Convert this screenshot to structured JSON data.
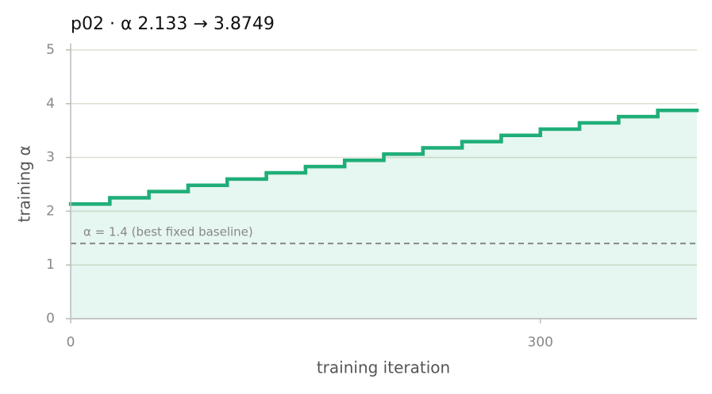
{
  "chart_data": {
    "type": "step",
    "title": "p02   ·   α 2.133 → 3.8749",
    "xlabel": "training iteration",
    "ylabel": "training α",
    "x": [
      0,
      25,
      50,
      75,
      100,
      125,
      150,
      175,
      200,
      225,
      250,
      275,
      300,
      325,
      350,
      375
    ],
    "series": [
      {
        "color": "#1fae78",
        "values": [
          2.133,
          2.2491,
          2.3653,
          2.4814,
          2.5975,
          2.7137,
          2.8298,
          2.9459,
          3.062,
          3.1782,
          3.2943,
          3.4104,
          3.5265,
          3.6427,
          3.7588,
          3.8749
        ]
      }
    ],
    "baseline": {
      "value": 1.4,
      "label": "α = 1.4 (best fixed baseline)"
    },
    "xlim": [
      0,
      400
    ],
    "xticks": [
      0,
      300
    ],
    "ylim": [
      0,
      5
    ],
    "yticks": [
      0,
      1,
      2,
      3,
      4,
      5
    ],
    "grid": true
  }
}
